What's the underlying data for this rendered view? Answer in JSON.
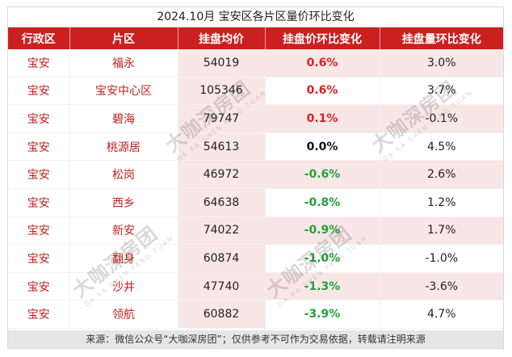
{
  "title": "2024.10月 宝安区各片区量价环比变化",
  "headers": [
    "行政区",
    "片区",
    "挂盘均价",
    "挂盘价环比变化",
    "挂盘量环比变化"
  ],
  "rows": [
    {
      "district": "宝安",
      "area": "福永",
      "price": "54019",
      "price_change": "0.6%",
      "price_trend": "up",
      "listing_change": "3.0%"
    },
    {
      "district": "宝安",
      "area": "宝安中心区",
      "price": "105346",
      "price_change": "0.6%",
      "price_trend": "up",
      "listing_change": "3.7%"
    },
    {
      "district": "宝安",
      "area": "碧海",
      "price": "79747",
      "price_change": "0.1%",
      "price_trend": "up",
      "listing_change": "-0.1%"
    },
    {
      "district": "宝安",
      "area": "桃源居",
      "price": "54613",
      "price_change": "0.0%",
      "price_trend": "flat",
      "listing_change": "4.5%"
    },
    {
      "district": "宝安",
      "area": "松岗",
      "price": "46972",
      "price_change": "-0.6%",
      "price_trend": "down",
      "listing_change": "2.6%"
    },
    {
      "district": "宝安",
      "area": "西乡",
      "price": "64638",
      "price_change": "-0.8%",
      "price_trend": "down",
      "listing_change": "1.2%"
    },
    {
      "district": "宝安",
      "area": "新安",
      "price": "74022",
      "price_change": "-0.9%",
      "price_trend": "down",
      "listing_change": "1.7%"
    },
    {
      "district": "宝安",
      "area": "翻身",
      "price": "60874",
      "price_change": "-1.0%",
      "price_trend": "down",
      "listing_change": "-1.0%"
    },
    {
      "district": "宝安",
      "area": "沙井",
      "price": "47740",
      "price_change": "-1.3%",
      "price_trend": "down",
      "listing_change": "-3.6%"
    },
    {
      "district": "宝安",
      "area": "领航",
      "price": "60882",
      "price_change": "-3.9%",
      "price_trend": "down",
      "listing_change": "4.7%"
    }
  ],
  "source": "来源：微信公众号“大咖深房团”；仅供参考不可作为交易依据，转载请注明来源",
  "watermark": {
    "brand": "大咖深房团",
    "subtitle": "DA KA SHEN FANG TUAN"
  },
  "colors": {
    "header": "#cc1f1f",
    "up": "#e02020",
    "down": "#22a33a",
    "highlight": "#f9e6e6"
  }
}
